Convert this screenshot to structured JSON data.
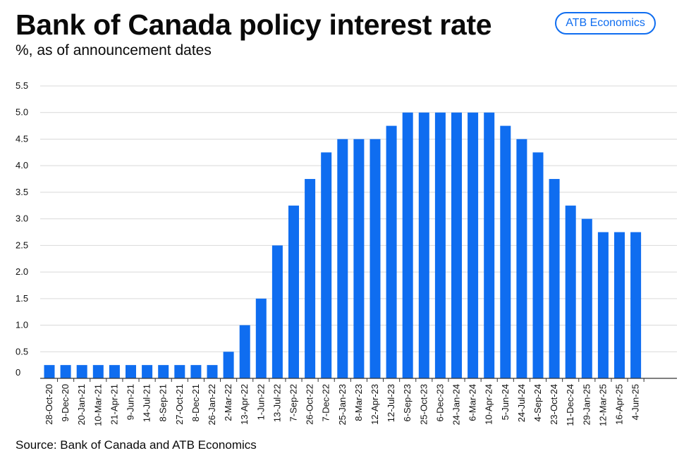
{
  "header": {
    "title": "Bank of Canada policy interest rate",
    "subtitle": "%, as of announcement dates",
    "badge": "ATB Economics"
  },
  "footer": {
    "source": "Source: Bank of Canada and ATB Economics"
  },
  "colors": {
    "bar": "#0f6df0",
    "grid": "#d9d9d9",
    "axis": "#333333"
  },
  "chart_data": {
    "type": "bar",
    "title": "Bank of Canada policy interest rate",
    "xlabel": "",
    "ylabel": "%, as of announcement dates",
    "ylim": [
      0,
      5.5
    ],
    "yticks": [
      0,
      0.5,
      1.0,
      1.5,
      2.0,
      2.5,
      3.0,
      3.5,
      4.0,
      4.5,
      5.0,
      5.5
    ],
    "ytick_labels": [
      "0",
      "0.5",
      "1.0",
      "1.5",
      "2.0",
      "2.5",
      "3.0",
      "3.5",
      "4.0",
      "4.5",
      "5.0",
      "5.5"
    ],
    "grid": true,
    "categories": [
      "28-Oct-20",
      "9-Dec-20",
      "20-Jan-21",
      "10-Mar-21",
      "21-Apr-21",
      "9-Jun-21",
      "14-Jul-21",
      "8-Sep-21",
      "27-Oct-21",
      "8-Dec-21",
      "26-Jan-22",
      "2-Mar-22",
      "13-Apr-22",
      "1-Jun-22",
      "13-Jul-22",
      "7-Sep-22",
      "26-Oct-22",
      "7-Dec-22",
      "25-Jan-23",
      "8-Mar-23",
      "12-Apr-23",
      "12-Jul-23",
      "6-Sep-23",
      "25-Oct-23",
      "6-Dec-23",
      "24-Jan-24",
      "6-Mar-24",
      "10-Apr-24",
      "5-Jun-24",
      "24-Jul-24",
      "4-Sep-24",
      "23-Oct-24",
      "11-Dec-24",
      "29-Jan-25",
      "12-Mar-25",
      "16-Apr-25",
      "4-Jun-25"
    ],
    "values": [
      0.25,
      0.25,
      0.25,
      0.25,
      0.25,
      0.25,
      0.25,
      0.25,
      0.25,
      0.25,
      0.25,
      0.5,
      1.0,
      1.5,
      2.5,
      3.25,
      3.75,
      4.25,
      4.5,
      4.5,
      4.5,
      4.75,
      5.0,
      5.0,
      5.0,
      5.0,
      5.0,
      5.0,
      4.75,
      4.5,
      4.25,
      3.75,
      3.25,
      3.0,
      2.75,
      2.75,
      2.75
    ]
  }
}
